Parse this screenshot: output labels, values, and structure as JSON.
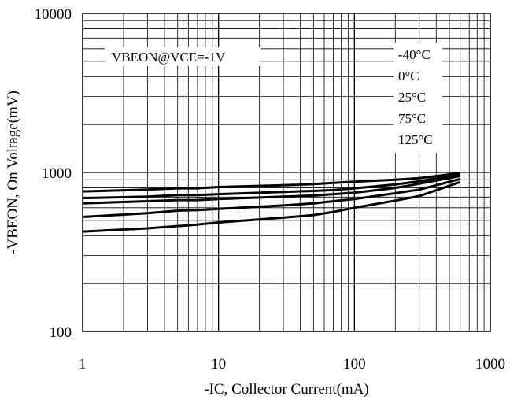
{
  "chart_data": {
    "type": "line",
    "title": "",
    "xlabel": "-IC, Collector Current(mA)",
    "ylabel": "-VBEON, On Voltage(mV)",
    "x_scale": "log",
    "y_scale": "log",
    "xlim": [
      1,
      1000
    ],
    "ylim": [
      100,
      10000
    ],
    "x_ticks": [
      {
        "value": 1,
        "label": "1"
      },
      {
        "value": 10,
        "label": "10"
      },
      {
        "value": 100,
        "label": "100"
      },
      {
        "value": 1000,
        "label": "1000"
      }
    ],
    "y_ticks": [
      {
        "value": 100,
        "label": "100"
      },
      {
        "value": 1000,
        "label": "1000"
      },
      {
        "value": 10000,
        "label": "10000"
      }
    ],
    "grid": true,
    "annotation": "VBEON@VCE=-1V",
    "legend": [
      "-40°C",
      "0°C",
      "25°C",
      "75°C",
      "125°C"
    ],
    "legend_position": "top-right",
    "series": [
      {
        "name": "-40°C",
        "x": [
          1,
          3,
          5,
          7,
          10,
          30,
          50,
          70,
          100,
          200,
          300,
          600
        ],
        "y": [
          760,
          780,
          795,
          795,
          810,
          830,
          845,
          860,
          875,
          900,
          920,
          990
        ]
      },
      {
        "name": "0°C",
        "x": [
          1,
          3,
          5,
          7,
          10,
          30,
          50,
          70,
          100,
          200,
          300,
          600
        ],
        "y": [
          690,
          705,
          720,
          720,
          730,
          755,
          765,
          775,
          795,
          840,
          880,
          975
        ]
      },
      {
        "name": "25°C",
        "x": [
          1,
          3,
          5,
          7,
          10,
          30,
          50,
          70,
          100,
          200,
          300,
          600
        ],
        "y": [
          640,
          660,
          670,
          670,
          680,
          705,
          715,
          730,
          745,
          800,
          850,
          950
        ]
      },
      {
        "name": "75°C",
        "x": [
          1,
          3,
          5,
          7,
          10,
          30,
          50,
          70,
          100,
          200,
          300,
          600
        ],
        "y": [
          525,
          555,
          575,
          580,
          590,
          620,
          640,
          660,
          680,
          740,
          780,
          910
        ]
      },
      {
        "name": "125°C",
        "x": [
          1,
          3,
          5,
          7,
          10,
          30,
          50,
          70,
          100,
          200,
          300,
          600
        ],
        "y": [
          425,
          445,
          460,
          470,
          485,
          520,
          540,
          565,
          600,
          665,
          710,
          870
        ]
      }
    ]
  }
}
